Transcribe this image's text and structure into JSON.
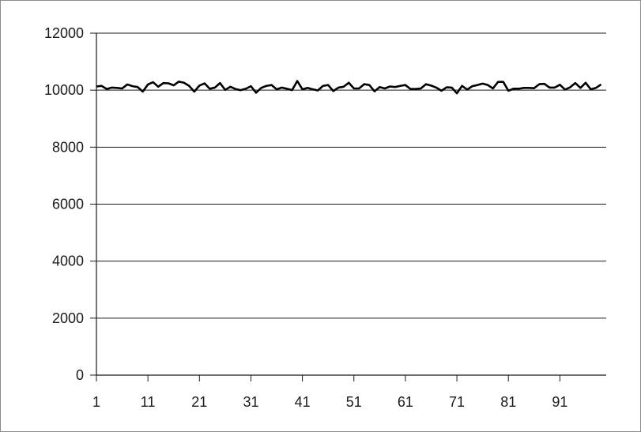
{
  "chart_data": {
    "type": "line",
    "title": "",
    "xlabel": "",
    "ylabel": "",
    "xlim": [
      1,
      100
    ],
    "ylim": [
      0,
      12000
    ],
    "x_ticks": [
      "1",
      "11",
      "21",
      "31",
      "41",
      "51",
      "61",
      "71",
      "81",
      "91"
    ],
    "y_ticks": [
      "0",
      "2000",
      "4000",
      "6000",
      "8000",
      "10000",
      "12000"
    ],
    "grid": "horizontal",
    "legend": "none",
    "line_color": "#000000",
    "series": [
      {
        "values": [
          10130,
          10150,
          10040,
          10090,
          10080,
          10060,
          10200,
          10140,
          10110,
          9950,
          10200,
          10280,
          10120,
          10250,
          10240,
          10170,
          10300,
          10260,
          10150,
          9950,
          10160,
          10240,
          10050,
          10090,
          10250,
          10010,
          10120,
          10040,
          10000,
          10050,
          10140,
          9910,
          10080,
          10150,
          10180,
          10030,
          10090,
          10050,
          10000,
          10320,
          10030,
          10080,
          10030,
          9990,
          10150,
          10180,
          9970,
          10090,
          10120,
          10260,
          10060,
          10060,
          10210,
          10180,
          9960,
          10110,
          10060,
          10130,
          10110,
          10150,
          10180,
          10040,
          10040,
          10060,
          10210,
          10160,
          10090,
          9980,
          10100,
          10090,
          9890,
          10150,
          10020,
          10140,
          10180,
          10230,
          10180,
          10060,
          10290,
          10290,
          9980,
          10050,
          10050,
          10080,
          10080,
          10070,
          10210,
          10220,
          10090,
          10090,
          10190,
          10020,
          10100,
          10250,
          10080,
          10260,
          10030,
          10080,
          10200
        ]
      }
    ]
  }
}
